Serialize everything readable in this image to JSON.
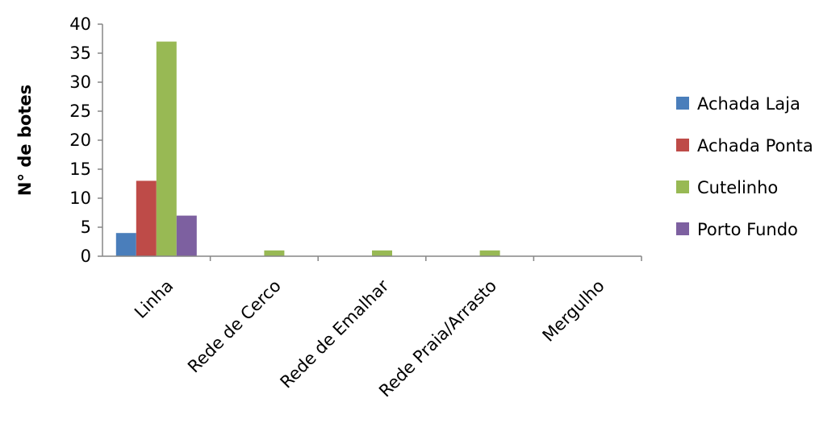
{
  "chart_data": {
    "type": "bar",
    "title": "",
    "xlabel": "",
    "ylabel": "N° de botes",
    "ylim": [
      0,
      40
    ],
    "yticks": [
      0,
      5,
      10,
      15,
      20,
      25,
      30,
      35,
      40
    ],
    "grid": false,
    "legend_position": "right",
    "categories": [
      "Linha",
      "Rede de Cerco",
      "Rede de Emalhar",
      "Rede Praia/Arrasto",
      "Mergulho"
    ],
    "series": [
      {
        "name": "Achada Laja",
        "color": "#4a7ebb",
        "values": [
          4,
          0,
          0,
          0,
          0
        ]
      },
      {
        "name": "Achada Ponta",
        "color": "#be4b48",
        "values": [
          13,
          0,
          0,
          0,
          0
        ]
      },
      {
        "name": "Cutelinho",
        "color": "#98b954",
        "values": [
          37,
          1,
          1,
          1,
          0
        ]
      },
      {
        "name": "Porto Fundo",
        "color": "#7d60a0",
        "values": [
          7,
          0,
          0,
          0,
          0
        ]
      }
    ]
  }
}
